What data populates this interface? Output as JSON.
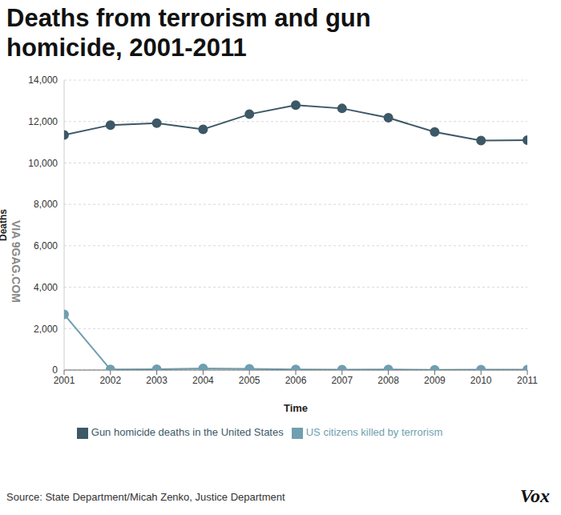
{
  "chart_data": {
    "type": "line",
    "title": "Deaths from terrorism and gun homicide, 2001-2011",
    "x_label": "Time",
    "y_label": "Deaths",
    "source": "Source: State Department/Micah Zenko, Justice Department",
    "logo": "Vox",
    "watermark": "VIA 9GAG.COM",
    "x": [
      2001,
      2002,
      2003,
      2004,
      2005,
      2006,
      2007,
      2008,
      2009,
      2010,
      2011
    ],
    "xlim": [
      2001,
      2011
    ],
    "xticks": [
      2001,
      2002,
      2003,
      2004,
      2005,
      2006,
      2007,
      2008,
      2009,
      2010,
      2011
    ],
    "ylim": [
      0,
      14000
    ],
    "yticks": [
      0,
      {
        "value": 2000,
        "label": "2,000"
      },
      {
        "value": 4000,
        "label": "4,000"
      },
      {
        "value": 6000,
        "label": "6,000"
      },
      {
        "value": 8000,
        "label": "8,000"
      },
      {
        "value": 10000,
        "label": "10,000"
      },
      {
        "value": 12000,
        "label": "12,000"
      },
      {
        "value": 14000,
        "label": "14,000"
      }
    ],
    "grid": true,
    "legend": "bottom",
    "marker": "circle",
    "series": [
      {
        "name": "US citizens killed by terrorism",
        "color": "#6f9fb0",
        "values": [
          2689,
          27,
          35,
          74,
          56,
          28,
          19,
          33,
          9,
          15,
          17
        ]
      },
      {
        "name": "Gun homicide deaths in the United States",
        "color": "#3d5866",
        "values": [
          11348,
          11829,
          11920,
          11624,
          12352,
          12791,
          12632,
          12179,
          11493,
          11078,
          11101
        ]
      }
    ]
  }
}
